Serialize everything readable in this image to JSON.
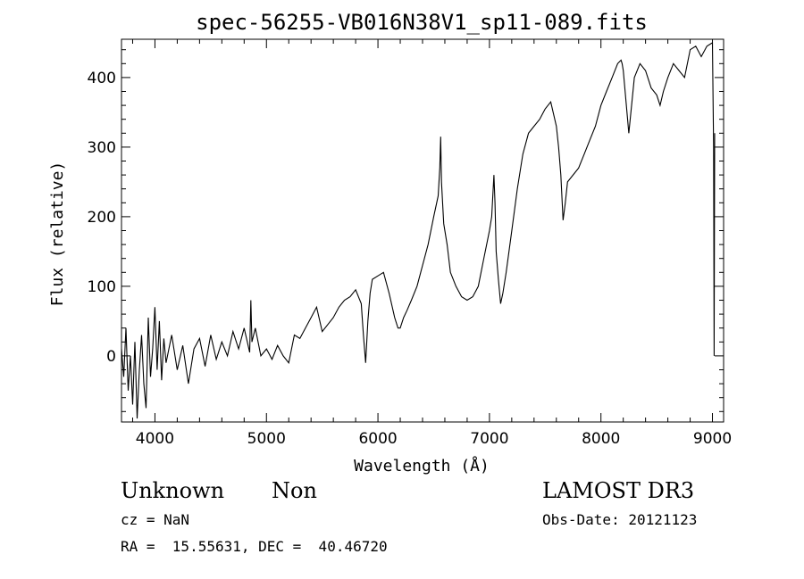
{
  "chart_data": {
    "type": "line",
    "title": "spec-56255-VB016N38V1_sp11-089.fits",
    "xlabel": "Wavelength (Å)",
    "ylabel": "Flux (relative)",
    "xlim": [
      3700,
      9100
    ],
    "ylim": [
      -95,
      455
    ],
    "x_ticks": [
      4000,
      5000,
      6000,
      7000,
      8000,
      9000
    ],
    "y_ticks": [
      0,
      100,
      200,
      300,
      400
    ],
    "grid": false,
    "series": [
      {
        "x": [
          3700,
          3720,
          3740,
          3760,
          3780,
          3800,
          3820,
          3840,
          3860,
          3880,
          3900,
          3920,
          3940,
          3960,
          3980,
          4000,
          4020,
          4040,
          4060,
          4080,
          4100,
          4150,
          4200,
          4250,
          4300,
          4350,
          4400,
          4450,
          4500,
          4550,
          4600,
          4650,
          4700,
          4750,
          4800,
          4850,
          4860,
          4870,
          4900,
          4950,
          5000,
          5050,
          5100,
          5150,
          5200,
          5250,
          5300,
          5350,
          5400,
          5450,
          5500,
          5550,
          5600,
          5650,
          5700,
          5750,
          5800,
          5850,
          5870,
          5890,
          5910,
          5930,
          5950,
          6000,
          6050,
          6100,
          6150,
          6180,
          6200,
          6230,
          6260,
          6300,
          6350,
          6400,
          6450,
          6500,
          6540,
          6555,
          6563,
          6570,
          6590,
          6620,
          6650,
          6700,
          6750,
          6800,
          6850,
          6900,
          6950,
          7000,
          7020,
          7040,
          7050,
          7060,
          7080,
          7100,
          7120,
          7150,
          7200,
          7250,
          7300,
          7350,
          7400,
          7450,
          7500,
          7550,
          7600,
          7620,
          7640,
          7660,
          7680,
          7700,
          7750,
          7800,
          7850,
          7900,
          7950,
          8000,
          8050,
          8100,
          8150,
          8180,
          8190,
          8200,
          8250,
          8300,
          8350,
          8400,
          8450,
          8500,
          8530,
          8560,
          8600,
          8650,
          8700,
          8750,
          8800,
          8850,
          8900,
          8950,
          9000,
          9010,
          9015,
          9020
        ],
        "y": [
          10,
          -30,
          40,
          -50,
          0,
          -70,
          20,
          -90,
          -20,
          30,
          -40,
          -75,
          55,
          -30,
          10,
          70,
          -20,
          50,
          -35,
          25,
          -10,
          30,
          -20,
          15,
          -40,
          10,
          25,
          -15,
          30,
          -5,
          20,
          0,
          35,
          10,
          40,
          5,
          80,
          20,
          40,
          0,
          10,
          -5,
          15,
          0,
          -10,
          30,
          25,
          40,
          55,
          70,
          35,
          45,
          55,
          70,
          80,
          85,
          95,
          75,
          30,
          -10,
          50,
          90,
          110,
          115,
          120,
          90,
          55,
          40,
          40,
          55,
          65,
          80,
          100,
          130,
          160,
          200,
          230,
          270,
          315,
          250,
          190,
          160,
          120,
          100,
          85,
          80,
          85,
          100,
          140,
          180,
          200,
          260,
          220,
          150,
          110,
          75,
          90,
          120,
          180,
          240,
          290,
          320,
          330,
          340,
          355,
          365,
          330,
          300,
          260,
          195,
          220,
          250,
          260,
          270,
          290,
          310,
          330,
          360,
          380,
          400,
          420,
          425,
          420,
          410,
          320,
          400,
          420,
          410,
          385,
          375,
          360,
          380,
          400,
          420,
          410,
          400,
          440,
          445,
          430,
          445,
          450,
          300,
          0,
          320
        ]
      }
    ]
  },
  "info": {
    "object_class": "Unknown",
    "object_subclass": "Non",
    "survey": "LAMOST DR3",
    "redshift": "cz = NaN",
    "obs_date": "Obs-Date: 20121123",
    "coords": "RA =  15.55631, DEC =  40.46720"
  }
}
